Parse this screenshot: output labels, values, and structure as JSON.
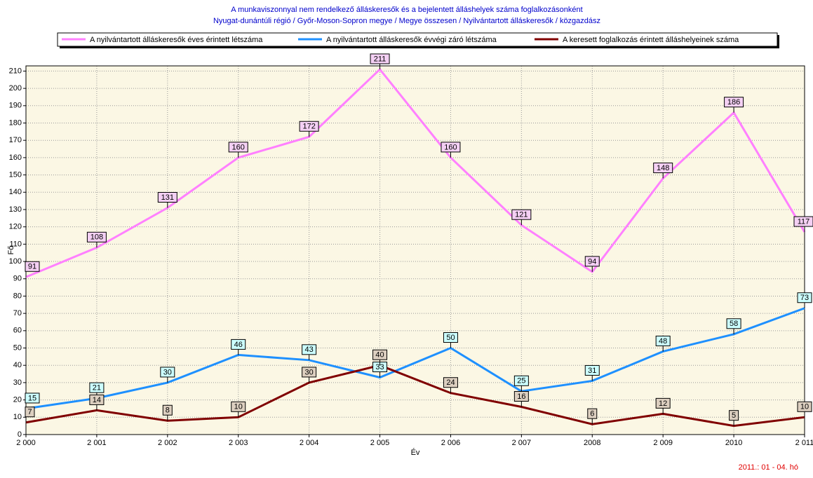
{
  "chart_data": {
    "type": "line",
    "title": "A munkaviszonnyal nem rendelkező álláskeresők és a bejelentett álláshelyek száma foglalkozásonként",
    "subtitle": "Nyugat-dunántúli régió / Győr-Moson-Sopron megye / Megye összesen / Nyilvántartott álláskeresők / közgazdász",
    "x_label": "Év",
    "y_label": "Fő",
    "note": "2011.: 01 - 04. hó",
    "x": [
      2000,
      2001,
      2002,
      2003,
      2004,
      2005,
      2006,
      2007,
      2008,
      2009,
      2010,
      2011
    ],
    "xlim": [
      2000,
      2011
    ],
    "xticks": [
      {
        "value": 2000,
        "label": "2 000"
      },
      {
        "value": 2001,
        "label": "2 001"
      },
      {
        "value": 2002,
        "label": "2 002"
      },
      {
        "value": 2003,
        "label": "2 003"
      },
      {
        "value": 2004,
        "label": "2 004"
      },
      {
        "value": 2005,
        "label": "2 005"
      },
      {
        "value": 2006,
        "label": "2 006"
      },
      {
        "value": 2007,
        "label": "2 007"
      },
      2008,
      {
        "value": 2009,
        "label": "2 009"
      },
      2010,
      {
        "value": 2011,
        "label": "2 011"
      }
    ],
    "ylim": [
      0,
      213
    ],
    "yticks": [
      0,
      10,
      20,
      30,
      40,
      50,
      60,
      70,
      80,
      90,
      100,
      110,
      120,
      130,
      140,
      150,
      160,
      170,
      180,
      190,
      200,
      210
    ],
    "grid": true,
    "legend": "top",
    "series": [
      {
        "name": "A nyilvántartott álláskeresők éves érintett létszáma",
        "color": "#ff80ff",
        "label_fill": "#f4d0f4",
        "values": [
          91,
          108,
          131,
          160,
          172,
          211,
          160,
          121,
          94,
          148,
          186,
          117
        ]
      },
      {
        "name": "A nyilvántartott álláskeresők évvégi záró létszáma",
        "color": "#1e90ff",
        "label_fill": "#ccffff",
        "values": [
          15,
          21,
          30,
          46,
          43,
          33,
          50,
          25,
          31,
          48,
          58,
          73
        ]
      },
      {
        "name": "A keresett foglalkozás érintett álláshelyeinek száma",
        "color": "#800000",
        "label_fill": "#dccfc0",
        "values": [
          7,
          14,
          8,
          10,
          30,
          40,
          24,
          16,
          6,
          12,
          5,
          10
        ]
      }
    ]
  }
}
